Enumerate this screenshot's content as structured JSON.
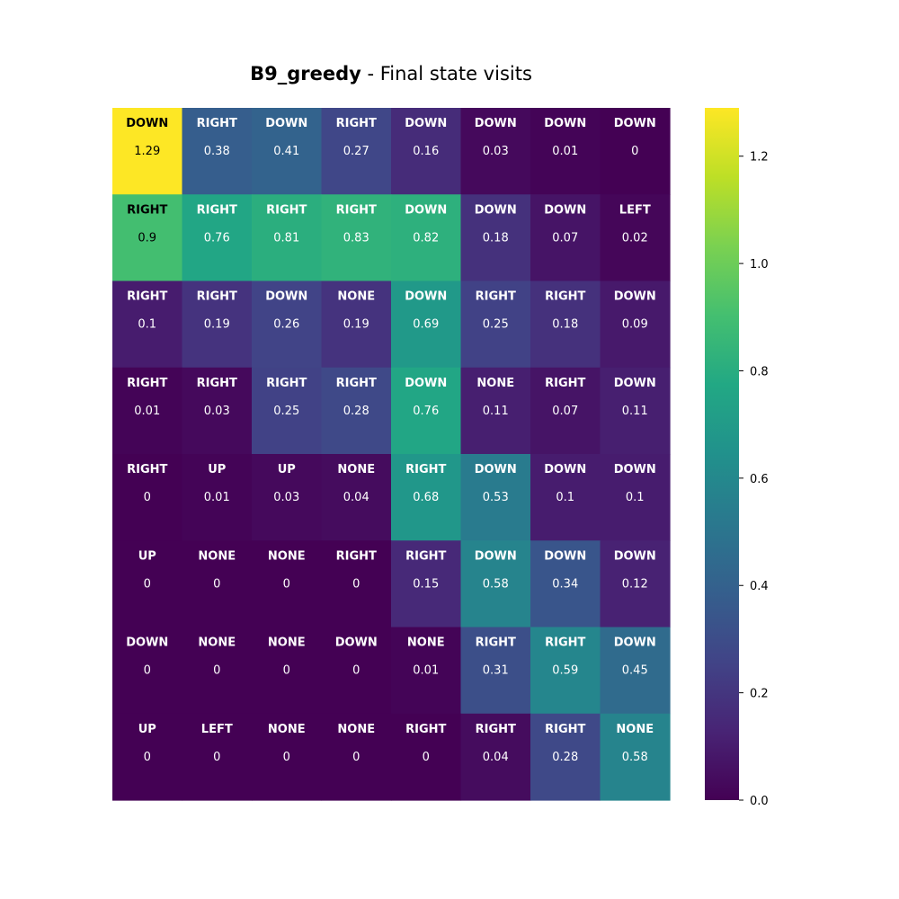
{
  "title": {
    "bold": "B9_greedy",
    "rest": " - Final state visits"
  },
  "chart_data": {
    "type": "heatmap",
    "colormap": "viridis",
    "rows": 8,
    "cols": 8,
    "actions": [
      [
        "DOWN",
        "RIGHT",
        "DOWN",
        "RIGHT",
        "DOWN",
        "DOWN",
        "DOWN",
        "DOWN"
      ],
      [
        "RIGHT",
        "RIGHT",
        "RIGHT",
        "RIGHT",
        "DOWN",
        "DOWN",
        "DOWN",
        "LEFT"
      ],
      [
        "RIGHT",
        "RIGHT",
        "DOWN",
        "NONE",
        "DOWN",
        "RIGHT",
        "RIGHT",
        "DOWN"
      ],
      [
        "RIGHT",
        "RIGHT",
        "RIGHT",
        "RIGHT",
        "DOWN",
        "NONE",
        "RIGHT",
        "DOWN"
      ],
      [
        "RIGHT",
        "UP",
        "UP",
        "NONE",
        "RIGHT",
        "DOWN",
        "DOWN",
        "DOWN"
      ],
      [
        "UP",
        "NONE",
        "NONE",
        "RIGHT",
        "RIGHT",
        "DOWN",
        "DOWN",
        "DOWN"
      ],
      [
        "DOWN",
        "NONE",
        "NONE",
        "DOWN",
        "NONE",
        "RIGHT",
        "RIGHT",
        "DOWN"
      ],
      [
        "UP",
        "LEFT",
        "NONE",
        "NONE",
        "RIGHT",
        "RIGHT",
        "RIGHT",
        "NONE"
      ]
    ],
    "values": [
      [
        1.29,
        0.38,
        0.41,
        0.27,
        0.16,
        0.03,
        0.01,
        0
      ],
      [
        0.9,
        0.76,
        0.81,
        0.83,
        0.82,
        0.18,
        0.07,
        0.02
      ],
      [
        0.1,
        0.19,
        0.26,
        0.19,
        0.69,
        0.25,
        0.18,
        0.09
      ],
      [
        0.01,
        0.03,
        0.25,
        0.28,
        0.76,
        0.11,
        0.07,
        0.11
      ],
      [
        0,
        0.01,
        0.03,
        0.04,
        0.68,
        0.53,
        0.1,
        0.1
      ],
      [
        0,
        0,
        0,
        0,
        0.15,
        0.58,
        0.34,
        0.12
      ],
      [
        0,
        0,
        0,
        0,
        0.01,
        0.31,
        0.59,
        0.45
      ],
      [
        0,
        0,
        0,
        0,
        0,
        0.04,
        0.28,
        0.58
      ]
    ],
    "colorbar": {
      "range": [
        0,
        1.29
      ],
      "ticks": [
        0.0,
        0.2,
        0.4,
        0.6,
        0.8,
        1.0,
        1.2
      ],
      "tick_labels": [
        "0.0",
        "0.2",
        "0.4",
        "0.6",
        "0.8",
        "1.0",
        "1.2"
      ]
    }
  }
}
